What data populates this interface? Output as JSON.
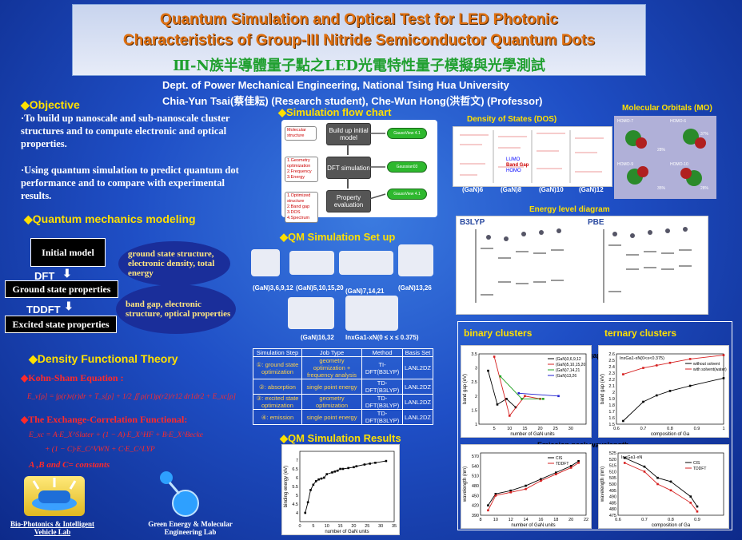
{
  "title": {
    "line1": "Quantum Simulation and Optical Test for LED Photonic",
    "line2": "Characteristics of Group-III Nitride Semiconductor Quantum Dots",
    "line3_chinese": "Ⅲ-N族半導體量子點之LED光電特性量子模擬與光學測試"
  },
  "affiliation": {
    "dept": "Dept. of Power Mechanical Engineering, National Tsing Hua University",
    "authors": "Chia-Yun Tsai(蔡佳耘) (Research student), Che-Wun Hong(洪哲文) (Professor)"
  },
  "objective": {
    "header": "◆Objective",
    "p1": "·To build up nanoscale and sub-nanoscale cluster structures and to compute electronic and optical properties.",
    "p2": "·Using quantum simulation to predict quantum dot performance and to compare with experimental results."
  },
  "qm_modeling": {
    "header": "◆Quantum mechanics modeling",
    "initial_model": "Initial  model",
    "dft": "DFT",
    "ground_state": "Ground state properties",
    "tddft": "TDDFT",
    "excited_state": "Excited state properties",
    "ellipse1": "ground state structure, electronic density, total energy",
    "ellipse2": "band gap, electronic structure, optical properties"
  },
  "dft_theory": {
    "header": "◆Density Functional Theory",
    "kohn_sham": "◆Kohn-Sham Equation :",
    "ks_formula": "E_v[ρ] = ∫ρ(r)v(r)dr + T_s[ρ] + 1/2 ∬ ρ(r1)ρ(r2)/r12 dr1dr2 + E_xc[ρ]",
    "xc_header": "◆The Exchange-Correlation Functional:",
    "xc_formula1": "E_xc = A·E_X^Slater + (1 − A)·E_X^HF + B·E_X^Becke",
    "xc_formula2": "+ (1 − C)·E_C^VWN + C·E_C^LYP",
    "constants": "A ,B and C= constants"
  },
  "logos": {
    "lab1": "Bio-Photonics & Intelligent Vehicle Lab",
    "lab2": "Green Energy & Molecular Engineering Lab"
  },
  "flow_chart": {
    "header": "◆Simulation flow chart",
    "box1": "Build up initial model",
    "box2": "DFT simulation",
    "box3": "Property evaluation",
    "note1": "Molecular structure",
    "note2": "1.Geometry optimization 2.Frequency 3.Energy",
    "note3": "1.Optimized structure 2.Band gap 3.DOS 4.Spectrum",
    "pill1": "GaussView 4.1",
    "pill2": "Gaussian03",
    "pill3": "GaussView 4.1"
  },
  "setup": {
    "header": "◆QM Simulation Set up",
    "clusters": [
      "(GaN)3,6,9,12",
      "(GaN)5,10,15,20",
      "(GaN)7,14,21",
      "(GaN)13,26",
      "(GaN)16,32"
    ],
    "ingan": "InxGa1-xN(0 ≤ x ≤ 0.375)",
    "table_headers": [
      "Simulation Step",
      "Job Type",
      "Method",
      "Basis Set"
    ],
    "table_rows": [
      [
        "①: ground state optimization",
        "geometry optimization + frequency analysis",
        "TI-DFT(B3LYP)",
        "LANL2DZ"
      ],
      [
        "②: absorption",
        "single point energy",
        "TD-DFT(B3LYP)",
        "LANL2DZ"
      ],
      [
        "③: excited state optimization",
        "geometry optimization",
        "TD-DFT(B3LYP)",
        "LANL2DZ"
      ],
      [
        "④: emission",
        "single point energy",
        "TD-DFT(B3LYP)",
        "LANL2DZ"
      ]
    ]
  },
  "results": {
    "header": "◆QM Simulation Results",
    "dos_title": "Density of States (DOS)",
    "dos_labels": [
      "(GaN)6",
      "(GaN)8",
      "(GaN)10",
      "(GaN)12"
    ],
    "dos_legend": [
      "LUMO",
      "Band Gap",
      "HOMO"
    ],
    "mo_title": "Molecular Orbitals (MO)",
    "mo_labels": [
      "HOMO-7",
      "HOMO-6",
      "HOMO-9",
      "HOMO-10"
    ],
    "mo_pcts": [
      "28%",
      "37%",
      "35%",
      "28%"
    ],
    "energy_title": "Energy level diagram",
    "b3lyp": "B3LYP",
    "pbe": "PBE",
    "binary_clusters": "binary clusters",
    "ternary_clusters": "ternary clusters",
    "band_gap": "band gap",
    "emission": "Emission peak wavelength"
  },
  "chart_data": [
    {
      "type": "scatter",
      "title": "",
      "xlabel": "number of GaN units",
      "ylabel": "binding energy (eV)",
      "xlim": [
        0,
        35
      ],
      "ylim": [
        3.5,
        7.5
      ],
      "xticks": [
        0,
        5,
        10,
        15,
        20,
        25,
        30,
        35
      ],
      "yticks": [
        4.0,
        4.5,
        5.0,
        5.5,
        6.0,
        6.5,
        7.0
      ],
      "x": [
        2,
        3,
        4,
        5,
        6,
        7,
        8,
        9,
        10,
        12,
        13,
        14,
        15,
        16,
        18,
        20,
        21,
        24,
        26,
        28,
        32
      ],
      "y": [
        4.0,
        4.6,
        5.3,
        5.6,
        5.8,
        5.9,
        5.95,
        6.0,
        6.2,
        6.3,
        6.35,
        6.4,
        6.5,
        6.5,
        6.55,
        6.6,
        6.65,
        6.75,
        6.8,
        6.85,
        6.95
      ]
    },
    {
      "type": "line",
      "title": "",
      "xlabel": "number of GaN units",
      "ylabel": "band gap (eV)",
      "xlim": [
        0,
        35
      ],
      "ylim": [
        1.0,
        3.5
      ],
      "xticks": [
        5,
        10,
        15,
        20,
        25,
        30
      ],
      "yticks": [
        1.0,
        1.5,
        2.0,
        2.5,
        3.0,
        3.5
      ],
      "series": [
        {
          "name": "(GaN)3,6,9,12",
          "x": [
            3,
            6,
            9,
            12
          ],
          "y": [
            2.9,
            1.7,
            1.9,
            1.6
          ]
        },
        {
          "name": "(GaN)5,10,15,20",
          "x": [
            5,
            10,
            15,
            20
          ],
          "y": [
            3.4,
            1.3,
            2.0,
            1.9
          ]
        },
        {
          "name": "(GaN)7,14,21",
          "x": [
            7,
            14,
            21
          ],
          "y": [
            2.7,
            1.9,
            1.9
          ]
        },
        {
          "name": "(GaN)13,26",
          "x": [
            13,
            26
          ],
          "y": [
            2.1,
            2.0
          ]
        }
      ]
    },
    {
      "type": "line",
      "title": "InxGa1-xN(0<x<0.375)",
      "xlabel": "composition of Ga",
      "ylabel": "band gap (eV)",
      "xlim": [
        0.6,
        1.0
      ],
      "ylim": [
        1.5,
        2.6
      ],
      "xticks": [
        0.6,
        0.7,
        0.8,
        0.9,
        1.0
      ],
      "yticks": [
        1.5,
        1.6,
        1.7,
        1.8,
        1.9,
        2.0,
        2.1,
        2.2,
        2.3,
        2.4,
        2.5,
        2.6
      ],
      "series": [
        {
          "name": "without solvent",
          "x": [
            0.625,
            0.7,
            0.75,
            0.8,
            0.875,
            1.0
          ],
          "y": [
            1.55,
            1.85,
            1.95,
            2.02,
            2.1,
            2.22
          ]
        },
        {
          "name": "with solvent(water)",
          "x": [
            0.625,
            0.7,
            0.75,
            0.8,
            0.875,
            1.0
          ],
          "y": [
            2.28,
            2.38,
            2.42,
            2.46,
            2.52,
            2.58
          ]
        }
      ]
    },
    {
      "type": "line",
      "title": "",
      "xlabel": "number of GaN units",
      "ylabel": "wavelength (nm)",
      "xlim": [
        8,
        22
      ],
      "ylim": [
        390,
        580
      ],
      "xticks": [
        8,
        10,
        12,
        14,
        16,
        18,
        20,
        22
      ],
      "yticks": [
        390,
        420,
        450,
        480,
        510,
        540,
        570
      ],
      "series": [
        {
          "name": "CIS",
          "x": [
            9,
            10,
            12,
            14,
            16,
            18,
            20,
            21
          ],
          "y": [
            420,
            455,
            465,
            480,
            500,
            520,
            540,
            555
          ]
        },
        {
          "name": "TDDFT",
          "x": [
            9,
            10,
            12,
            14,
            16,
            18,
            20,
            21
          ],
          "y": [
            405,
            450,
            460,
            470,
            495,
            515,
            535,
            550
          ]
        }
      ]
    },
    {
      "type": "line",
      "title": "InxGa1-xN",
      "xlabel": "composition of Ga",
      "ylabel": "wavelength (nm)",
      "xlim": [
        0.6,
        1.0
      ],
      "ylim": [
        475,
        525
      ],
      "xticks": [
        0.6,
        0.7,
        0.8,
        0.9
      ],
      "yticks": [
        475,
        480,
        485,
        490,
        495,
        500,
        505,
        510,
        515,
        520,
        525
      ],
      "series": [
        {
          "name": "CIS",
          "x": [
            0.625,
            0.7,
            0.75,
            0.8,
            0.875,
            0.9
          ],
          "y": [
            521,
            514,
            505,
            502,
            490,
            482
          ]
        },
        {
          "name": "TDDFT",
          "x": [
            0.625,
            0.7,
            0.75,
            0.8,
            0.875,
            0.9
          ],
          "y": [
            517,
            510,
            500,
            495,
            485,
            478
          ]
        }
      ]
    }
  ]
}
